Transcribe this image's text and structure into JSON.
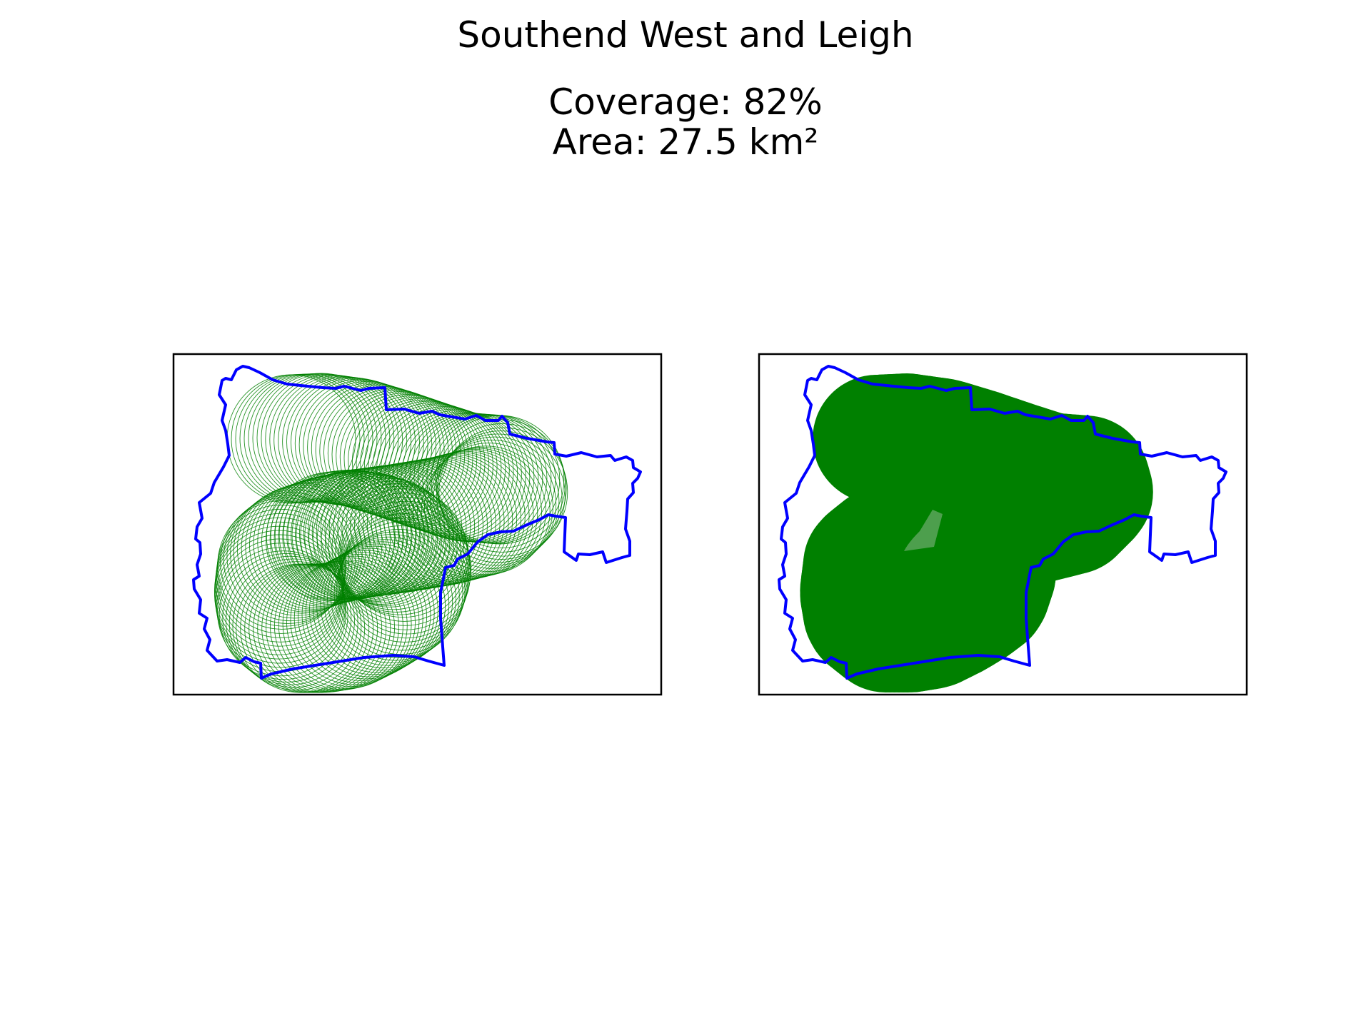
{
  "figure": {
    "title": "Southend West and Leigh",
    "coverage_label": "Coverage: 82%",
    "area_label": "Area: 27.5 km²"
  },
  "colors": {
    "boundary": "#0000ff",
    "coverage": "#008000",
    "frame": "#000000",
    "background": "#ffffff"
  },
  "panels": [
    {
      "id": "circle-outlines",
      "style": "outlined-circles"
    },
    {
      "id": "filled-union",
      "style": "filled-union"
    }
  ]
}
